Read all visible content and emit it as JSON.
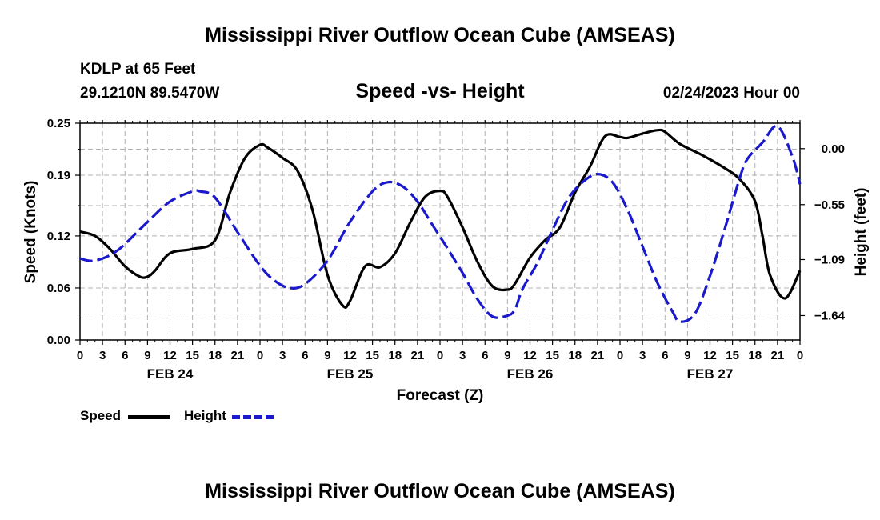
{
  "page": {
    "title_top": "Mississippi River Outflow Ocean Cube (AMSEAS)",
    "title_bottom": "Mississippi River Outflow Ocean Cube (AMSEAS)",
    "station": "KDLP at 65 Feet",
    "coords": "29.1210N  89.5470W",
    "subtitle": "Speed -vs- Height",
    "datetime": "02/24/2023 Hour 00"
  },
  "legend": {
    "speed_label": "Speed",
    "height_label": "Height",
    "speed_color": "#000000",
    "height_color": "#1a1acc"
  },
  "chart_data": {
    "type": "line",
    "title": "Speed -vs- Height",
    "xlabel": "Forecast (Z)",
    "ylabel_left": "Speed (Knots)",
    "ylabel_right": "Height (feet)",
    "x_unit": "hours from 02/24 00Z",
    "xlim": [
      0,
      96
    ],
    "x_ticks": [
      0,
      3,
      6,
      9,
      12,
      15,
      18,
      21,
      24,
      27,
      30,
      33,
      36,
      39,
      42,
      45,
      48,
      51,
      54,
      57,
      60,
      63,
      66,
      69,
      72,
      75,
      78,
      81,
      84,
      87,
      90,
      93,
      96
    ],
    "x_tick_labels": [
      "0",
      "3",
      "6",
      "9",
      "12",
      "15",
      "18",
      "21",
      "0",
      "3",
      "6",
      "9",
      "12",
      "15",
      "18",
      "21",
      "0",
      "3",
      "6",
      "9",
      "12",
      "15",
      "18",
      "21",
      "0",
      "3",
      "6",
      "9",
      "12",
      "15",
      "18",
      "21",
      "0"
    ],
    "day_labels": [
      {
        "label": "FEB 24",
        "x": 12
      },
      {
        "label": "FEB 25",
        "x": 36
      },
      {
        "label": "FEB 26",
        "x": 60
      },
      {
        "label": "FEB 27",
        "x": 84
      }
    ],
    "ylim_left": [
      0,
      0.25
    ],
    "left_ticks": [
      0,
      0.06,
      0.12,
      0.19,
      0.25
    ],
    "left_tick_labels": [
      "0.00",
      "0.06",
      "0.12",
      "0.19",
      "0.25"
    ],
    "ylim_right": [
      -1.88,
      0.25
    ],
    "right_ticks": [
      0.0,
      -0.55,
      -1.09,
      -1.64
    ],
    "right_tick_labels": [
      "0.00",
      "−0.55",
      "−1.09",
      "−1.64"
    ],
    "grid": true,
    "series": [
      {
        "name": "Speed",
        "axis": "left",
        "style": "solid",
        "x": [
          0,
          2,
          4,
          6,
          8,
          9,
          10,
          12,
          15,
          18,
          20,
          22,
          24,
          25,
          27,
          29,
          31,
          33,
          35,
          36,
          38,
          40,
          42,
          44,
          46,
          48,
          49,
          51,
          53,
          55,
          57,
          58,
          60,
          62,
          64,
          66,
          68,
          70,
          72,
          73,
          75,
          77,
          78,
          80,
          83,
          86,
          88,
          90,
          91,
          92,
          94,
          96
        ],
        "values": [
          0.125,
          0.12,
          0.105,
          0.085,
          0.073,
          0.073,
          0.08,
          0.1,
          0.105,
          0.115,
          0.17,
          0.21,
          0.225,
          0.222,
          0.21,
          0.195,
          0.15,
          0.075,
          0.04,
          0.045,
          0.085,
          0.084,
          0.1,
          0.135,
          0.165,
          0.172,
          0.165,
          0.13,
          0.09,
          0.062,
          0.058,
          0.065,
          0.095,
          0.115,
          0.13,
          0.17,
          0.2,
          0.235,
          0.234,
          0.233,
          0.238,
          0.242,
          0.24,
          0.226,
          0.213,
          0.198,
          0.185,
          0.16,
          0.12,
          0.075,
          0.048,
          0.08
        ]
      },
      {
        "name": "Height",
        "axis": "right",
        "style": "dashed",
        "x": [
          0,
          2,
          5,
          9,
          12,
          15,
          16,
          18,
          21,
          24,
          26,
          28,
          30,
          33,
          36,
          39,
          41,
          43,
          45,
          47,
          49,
          51,
          53,
          55,
          57,
          58,
          59,
          61,
          63,
          65,
          67,
          69,
          71,
          73,
          75,
          77,
          79,
          80,
          82,
          84,
          86,
          88,
          89,
          91,
          93,
          95,
          96
        ],
        "values": [
          -1.08,
          -1.1,
          -1.0,
          -0.72,
          -0.52,
          -0.42,
          -0.42,
          -0.48,
          -0.82,
          -1.15,
          -1.3,
          -1.37,
          -1.33,
          -1.1,
          -0.72,
          -0.42,
          -0.33,
          -0.37,
          -0.52,
          -0.75,
          -0.98,
          -1.22,
          -1.48,
          -1.65,
          -1.64,
          -1.58,
          -1.38,
          -1.12,
          -0.8,
          -0.5,
          -0.33,
          -0.25,
          -0.33,
          -0.6,
          -0.96,
          -1.32,
          -1.6,
          -1.7,
          -1.62,
          -1.25,
          -0.78,
          -0.28,
          -0.1,
          0.06,
          0.22,
          -0.08,
          -0.35
        ]
      }
    ]
  }
}
